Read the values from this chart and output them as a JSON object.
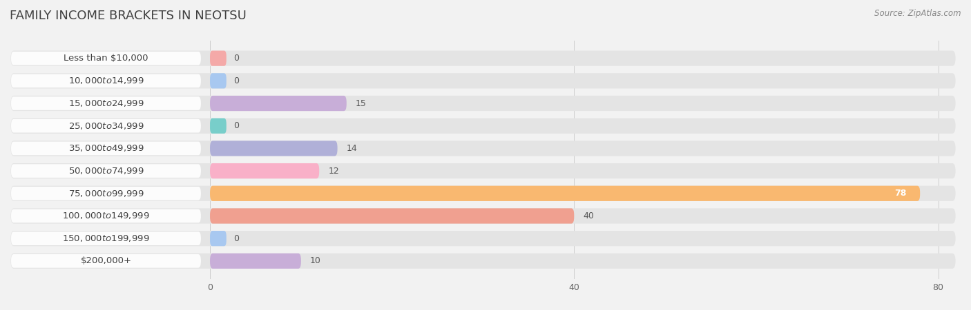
{
  "title": "FAMILY INCOME BRACKETS IN NEOTSU",
  "source": "Source: ZipAtlas.com",
  "categories": [
    "Less than $10,000",
    "$10,000 to $14,999",
    "$15,000 to $24,999",
    "$25,000 to $34,999",
    "$35,000 to $49,999",
    "$50,000 to $74,999",
    "$75,000 to $99,999",
    "$100,000 to $149,999",
    "$150,000 to $199,999",
    "$200,000+"
  ],
  "values": [
    0,
    0,
    15,
    0,
    14,
    12,
    78,
    40,
    0,
    10
  ],
  "bar_colors": [
    "#f4a9a8",
    "#a8c8f0",
    "#c8aed8",
    "#78ceca",
    "#b0b0d8",
    "#f9b0c8",
    "#f9b870",
    "#f0a090",
    "#a8c8f0",
    "#c8aed8"
  ],
  "zero_stub_colors": [
    "#f4a9a8",
    "#a8c8f0",
    "#c8aed8",
    "#78ceca",
    "#b0b0d8",
    "#f9b0c8",
    "#f9b870",
    "#f0a090",
    "#a8c8f0",
    "#c8aed8"
  ],
  "xlim": [
    0,
    80
  ],
  "xticks": [
    0,
    40,
    80
  ],
  "background_color": "#f2f2f2",
  "bar_bg_color": "#e4e4e4",
  "title_fontsize": 13,
  "label_fontsize": 9.5,
  "value_fontsize": 9,
  "value_inside_color": "#ffffff",
  "value_outside_color": "#555555"
}
